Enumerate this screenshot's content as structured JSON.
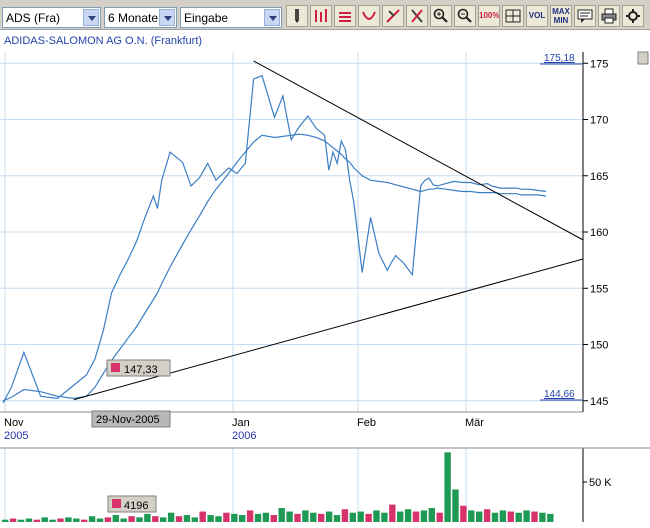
{
  "toolbar": {
    "symbol_value": "ADS (Fra)",
    "period_value": "6 Monate",
    "mode_value": "Eingabe",
    "vol_label": "VOL",
    "maxmin_label": "MAX MIN",
    "zoom100_label": "100%"
  },
  "chart": {
    "title": "ADIDAS-SALOMON AG O.N. (Frankfurt)",
    "max_ref": "175,18",
    "min_ref": "144,66",
    "cursor_price": "147,33",
    "cursor_date": "29-Nov-2005",
    "cursor_volume": "4196",
    "volume_axis_label": "50 K",
    "months": [
      {
        "label": "Nov",
        "year": "2005"
      },
      {
        "label": "Jan",
        "year": "2006"
      },
      {
        "label": "Feb",
        "year": ""
      },
      {
        "label": "Mär",
        "year": ""
      }
    ],
    "colors": {
      "price": "#3b7fc4",
      "trend": "#000000",
      "vol_up": "#1f9a55",
      "vol_down": "#d6336b",
      "grid": "#c7dcef",
      "marker": "#d6336b"
    }
  },
  "chart_data": {
    "type": "line",
    "y_ticks": [
      145,
      150,
      155,
      160,
      165,
      170,
      175
    ],
    "ylim": [
      144,
      176
    ],
    "x": [
      0,
      2,
      5,
      9,
      13,
      17,
      20,
      22,
      24,
      26,
      28,
      30,
      32,
      34,
      36,
      37,
      38,
      40,
      43,
      45,
      47,
      49,
      51,
      54,
      56,
      58,
      60,
      62,
      65,
      67,
      69,
      71,
      73,
      75,
      77,
      78,
      79,
      80,
      81,
      82,
      83,
      84,
      86,
      88,
      90,
      92,
      93,
      94,
      96,
      98,
      100,
      101,
      102,
      103,
      104,
      106,
      108,
      110,
      112,
      114,
      116,
      117,
      118,
      119,
      121,
      123,
      124,
      126,
      128,
      130
    ],
    "series": [
      {
        "values": [
          144.8,
          146.2,
          149.3,
          145.4,
          145.2,
          146.4,
          147.3,
          148.7,
          151.2,
          154.6,
          156.2,
          157.6,
          159.2,
          161.3,
          163.2,
          162.1,
          164.6,
          167.1,
          166.2,
          164.1,
          164.8,
          166.1,
          164.6,
          165.7,
          165.2,
          166.1,
          173.6,
          173.9,
          170.2,
          172.1,
          168.2,
          169.4,
          170.3,
          169.2,
          168.6,
          165.5,
          167.1,
          166.1,
          168.1,
          167.3,
          164.6,
          162.6,
          156.4,
          161.3,
          158.1,
          156.6,
          157.3,
          157.9,
          157.2,
          156.2,
          164.1,
          164.6,
          164.8,
          164.2,
          164.1,
          164.3,
          164.5,
          164.4,
          164.4,
          164.2,
          164.3,
          164.1,
          164.0,
          163.9,
          163.9,
          163.9,
          163.8,
          163.8,
          163.7,
          163.6
        ]
      },
      {
        "values": [
          145.0,
          145.3,
          146.0,
          145.8,
          145.4,
          145.2,
          145.4,
          146.2,
          147.4,
          148.6,
          149.6,
          150.6,
          151.6,
          152.8,
          154.0,
          154.6,
          155.4,
          156.9,
          158.9,
          160.2,
          161.4,
          162.7,
          163.8,
          165.2,
          166.2,
          167.1,
          168.0,
          168.6,
          168.4,
          168.5,
          168.6,
          168.7,
          168.6,
          168.4,
          168.1,
          167.8,
          167.5,
          167.2,
          166.9,
          166.5,
          166.2,
          165.7,
          165.0,
          164.6,
          164.5,
          164.4,
          164.3,
          164.2,
          164.0,
          163.8,
          163.6,
          163.7,
          163.8,
          163.8,
          163.9,
          163.8,
          163.7,
          163.6,
          163.6,
          163.5,
          163.5,
          163.5,
          163.5,
          163.4,
          163.4,
          163.4,
          163.3,
          163.3,
          163.3,
          163.2
        ]
      }
    ],
    "volume_values": [
      2,
      3,
      2,
      3,
      2,
      4,
      2,
      3,
      4,
      3,
      2,
      5,
      3,
      4,
      6,
      3,
      5,
      4,
      7,
      5,
      4,
      8,
      5,
      6,
      4,
      9,
      6,
      5,
      8,
      7,
      6,
      10,
      7,
      8,
      6,
      12,
      9,
      7,
      10,
      8,
      7,
      9,
      6,
      11,
      8,
      9,
      7,
      10,
      8,
      15,
      9,
      11,
      9,
      10,
      12,
      8,
      60,
      28,
      14,
      10,
      9,
      11,
      8,
      10,
      9,
      8,
      10,
      9,
      8,
      7
    ]
  }
}
